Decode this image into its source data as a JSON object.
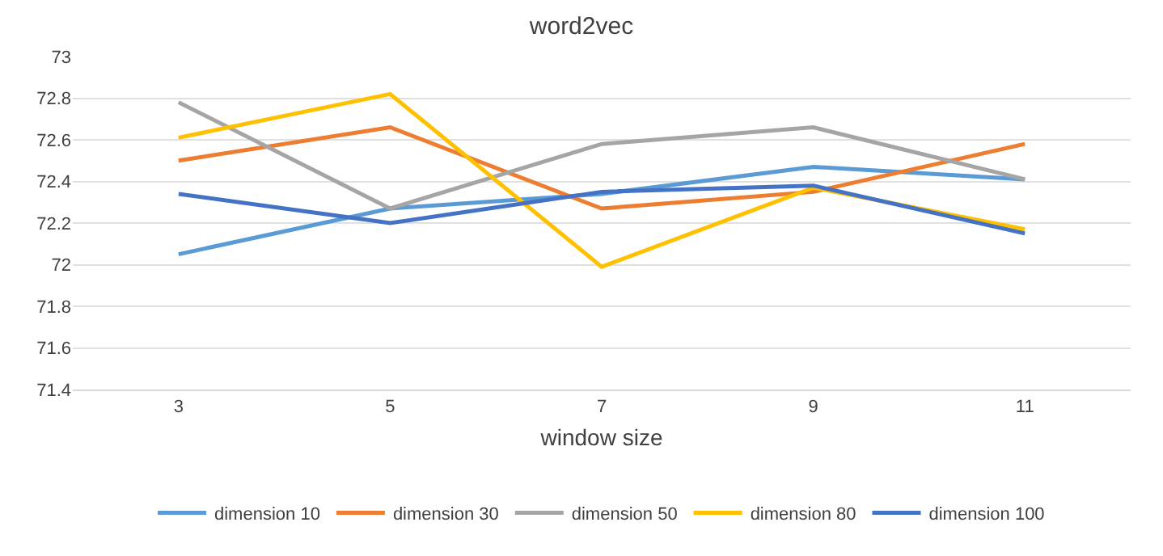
{
  "chart_data": {
    "type": "line",
    "title": "word2vec",
    "xlabel": "window size",
    "categories": [
      "3",
      "5",
      "7",
      "9",
      "11"
    ],
    "series": [
      {
        "name": "dimension 10",
        "color": "#5b9bd5",
        "values": [
          72.05,
          72.27,
          72.34,
          72.47,
          72.41
        ]
      },
      {
        "name": "dimension 30",
        "color": "#ed7d31",
        "values": [
          72.5,
          72.66,
          72.27,
          72.35,
          72.58
        ]
      },
      {
        "name": "dimension 50",
        "color": "#a5a5a5",
        "values": [
          72.78,
          72.27,
          72.58,
          72.66,
          72.41
        ]
      },
      {
        "name": "dimension 80",
        "color": "#ffc000",
        "values": [
          72.61,
          72.82,
          71.99,
          72.37,
          72.17
        ]
      },
      {
        "name": "dimension 100",
        "color": "#4472c4",
        "values": [
          72.34,
          72.2,
          72.35,
          72.38,
          72.15
        ]
      }
    ],
    "ylim": [
      71.4,
      73
    ],
    "yticks": [
      71.4,
      71.6,
      71.8,
      72,
      72.2,
      72.4,
      72.6,
      72.8,
      73
    ],
    "grid": "y",
    "legend": "bottom",
    "marker": "none",
    "line_style": "solid"
  }
}
